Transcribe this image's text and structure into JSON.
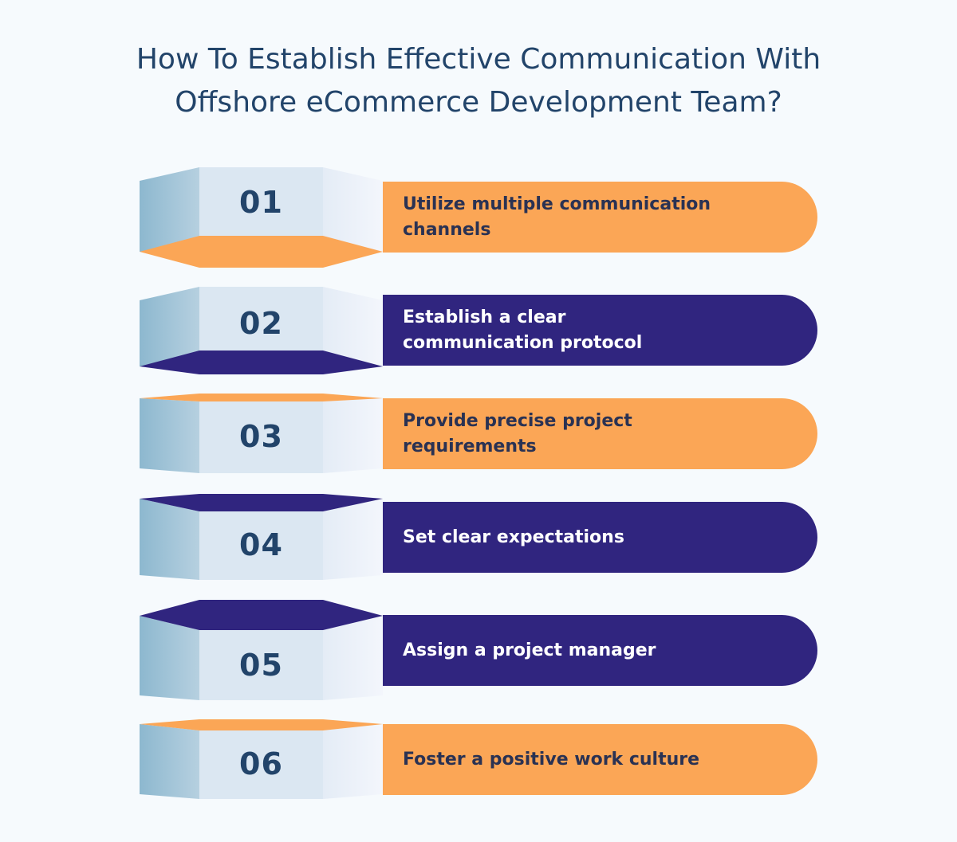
{
  "title": {
    "line1": "How To Establish Effective Communication With",
    "line2": "Offshore eCommerce Development Team?"
  },
  "colors": {
    "orange": "#fba656",
    "purple": "#30257f",
    "title": "#22446a",
    "block_left": "#8db8cf",
    "block_front": "#dbe7f2",
    "block_right": "#f3f6fc"
  },
  "steps": [
    {
      "number": "01",
      "text": "Utilize multiple communication channels",
      "accent": "orange"
    },
    {
      "number": "02",
      "text": "Establish a clear communication protocol",
      "accent": "purple"
    },
    {
      "number": "03",
      "text": "Provide precise project requirements",
      "accent": "orange"
    },
    {
      "number": "04",
      "text": "Set clear expectations",
      "accent": "purple"
    },
    {
      "number": "05",
      "text": "Assign a project manager",
      "accent": "purple"
    },
    {
      "number": "06",
      "text": "Foster a positive work culture",
      "accent": "orange"
    }
  ]
}
